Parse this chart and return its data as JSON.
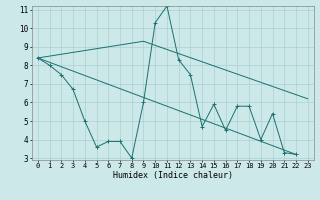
{
  "xlabel": "Humidex (Indice chaleur)",
  "x_values": [
    0,
    1,
    2,
    3,
    4,
    5,
    6,
    7,
    8,
    9,
    10,
    11,
    12,
    13,
    14,
    15,
    16,
    17,
    18,
    19,
    20,
    21,
    22,
    23
  ],
  "line1_y": [
    8.4,
    8.0,
    7.5,
    6.7,
    5.0,
    3.6,
    3.9,
    3.9,
    3.0,
    6.0,
    10.3,
    11.2,
    8.3,
    7.5,
    4.7,
    5.9,
    4.5,
    5.8,
    5.8,
    4.0,
    5.4,
    3.3,
    3.2,
    null
  ],
  "line2_x": [
    0,
    9,
    23
  ],
  "line2_y": [
    8.4,
    9.3,
    6.2
  ],
  "line3_x": [
    0,
    22
  ],
  "line3_y": [
    8.4,
    3.2
  ],
  "background_color": "#cce8e8",
  "grid_color": "#aad0d0",
  "line_color": "#1a7070",
  "ylim": [
    3,
    11
  ],
  "xlim": [
    -0.5,
    23.5
  ],
  "yticks": [
    3,
    4,
    5,
    6,
    7,
    8,
    9,
    10,
    11
  ],
  "xticks": [
    0,
    1,
    2,
    3,
    4,
    5,
    6,
    7,
    8,
    9,
    10,
    11,
    12,
    13,
    14,
    15,
    16,
    17,
    18,
    19,
    20,
    21,
    22,
    23
  ],
  "xlabel_fontsize": 6.0,
  "tick_fontsize": 5.0
}
